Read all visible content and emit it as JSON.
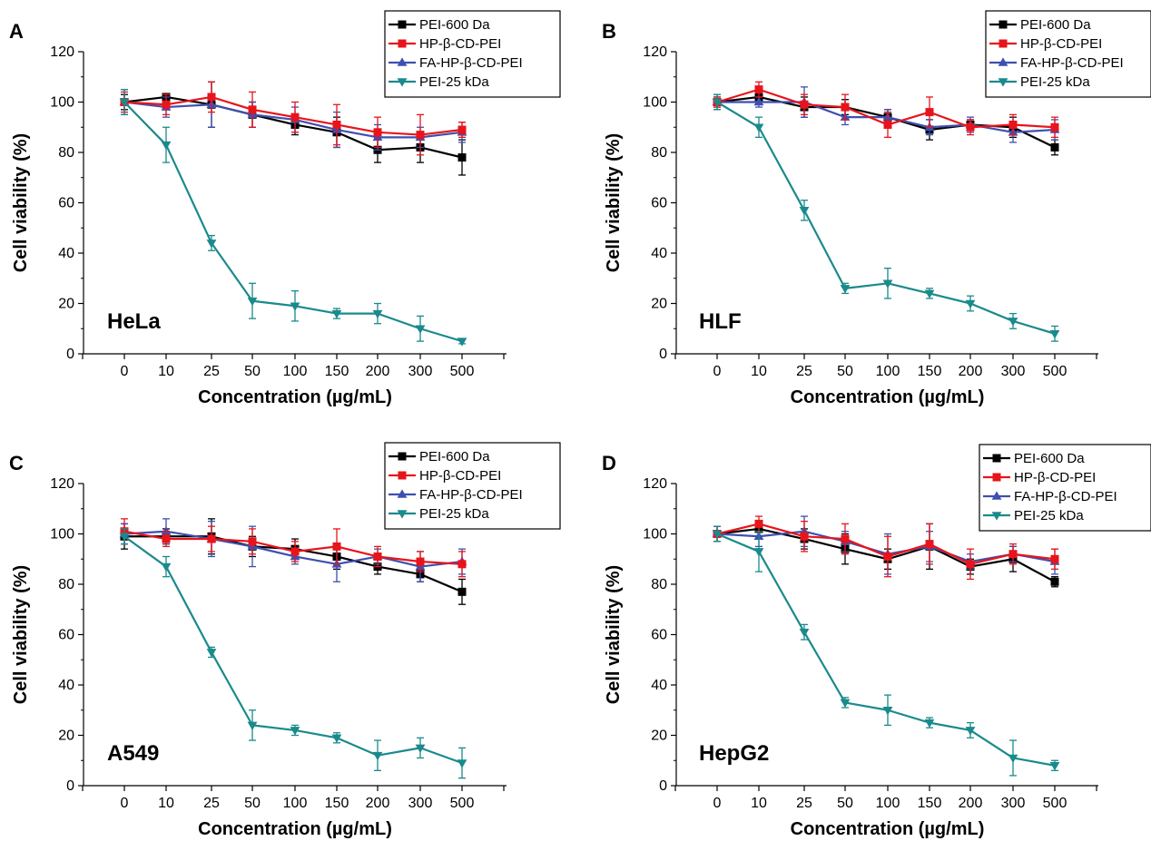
{
  "figure": {
    "chart_data": [
      {
        "type": "line",
        "panel": "A",
        "cell_line": "HeLa",
        "xlabel": "Concentration (µg/mL)",
        "ylabel": "Cell viability (%)",
        "categories": [
          "0",
          "10",
          "25",
          "50",
          "100",
          "150",
          "200",
          "300",
          "500"
        ],
        "ylim": [
          0,
          120
        ],
        "yticks": [
          0,
          20,
          40,
          60,
          80,
          100,
          120
        ],
        "legend_position": "top-right",
        "series": [
          {
            "name": "PEI-600 Da",
            "color": "#000000",
            "marker": "square",
            "values": [
              100,
              102,
              99,
              95,
              91,
              88,
              81,
              82,
              78
            ],
            "errors": [
              3,
              1,
              9,
              5,
              4,
              6,
              5,
              6,
              7
            ]
          },
          {
            "name": "HP-β-CD-PEI",
            "color": "#e8141b",
            "marker": "square",
            "values": [
              100,
              99,
              102,
              97,
              94,
              91,
              88,
              87,
              89
            ],
            "errors": [
              4,
              4,
              6,
              7,
              6,
              8,
              6,
              8,
              3
            ]
          },
          {
            "name": "FA-HP-β-CD-PEI",
            "color": "#3e4fb0",
            "marker": "triangle-up",
            "values": [
              100,
              98,
              99,
              95,
              93,
              89,
              86,
              86,
              88
            ],
            "errors": [
              5,
              4,
              9,
              5,
              5,
              7,
              5,
              4,
              4
            ]
          },
          {
            "name": "PEI-25 kDa",
            "color": "#1a8a8c",
            "marker": "triangle-down",
            "values": [
              100,
              83,
              44,
              21,
              19,
              16,
              16,
              10,
              5
            ],
            "errors": [
              5,
              7,
              3,
              7,
              6,
              2,
              4,
              5,
              1
            ]
          }
        ]
      },
      {
        "type": "line",
        "panel": "B",
        "cell_line": "HLF",
        "xlabel": "Concentration (µg/mL)",
        "ylabel": "Cell viability (%)",
        "categories": [
          "0",
          "10",
          "25",
          "50",
          "100",
          "150",
          "200",
          "300",
          "500"
        ],
        "ylim": [
          0,
          120
        ],
        "yticks": [
          0,
          20,
          40,
          60,
          80,
          100,
          120
        ],
        "legend_position": "top-right",
        "series": [
          {
            "name": "PEI-600 Da",
            "color": "#000000",
            "marker": "square",
            "values": [
              100,
              102,
              98,
              98,
              94,
              89,
              91,
              90,
              82
            ],
            "errors": [
              2,
              3,
              4,
              3,
              3,
              4,
              2,
              4,
              3
            ]
          },
          {
            "name": "HP-β-CD-PEI",
            "color": "#e8141b",
            "marker": "square",
            "values": [
              100,
              105,
              99,
              98,
              91,
              96,
              90,
              91,
              90
            ],
            "errors": [
              2,
              3,
              4,
              5,
              5,
              6,
              3,
              4,
              4
            ]
          },
          {
            "name": "FA-HP-β-CD-PEI",
            "color": "#3e4fb0",
            "marker": "triangle-up",
            "values": [
              100,
              100,
              100,
              94,
              94,
              90,
              91,
              88,
              89
            ],
            "errors": [
              3,
              2,
              6,
              3,
              3,
              3,
              3,
              4,
              4
            ]
          },
          {
            "name": "PEI-25 kDa",
            "color": "#1a8a8c",
            "marker": "triangle-down",
            "values": [
              100,
              90,
              57,
              26,
              28,
              24,
              20,
              13,
              8
            ],
            "errors": [
              3,
              4,
              4,
              2,
              6,
              2,
              3,
              3,
              3
            ]
          }
        ]
      },
      {
        "type": "line",
        "panel": "C",
        "cell_line": "A549",
        "xlabel": "Concentration (µg/mL)",
        "ylabel": "Cell viability (%)",
        "categories": [
          "0",
          "10",
          "25",
          "50",
          "100",
          "150",
          "200",
          "300",
          "500"
        ],
        "ylim": [
          0,
          120
        ],
        "yticks": [
          0,
          20,
          40,
          60,
          80,
          100,
          120
        ],
        "legend_position": "top-right",
        "series": [
          {
            "name": "PEI-600 Da",
            "color": "#000000",
            "marker": "square",
            "values": [
              99,
              99,
              99,
              95,
              94,
              91,
              87,
              84,
              77
            ],
            "errors": [
              5,
              3,
              7,
              4,
              4,
              5,
              3,
              3,
              5
            ]
          },
          {
            "name": "HP-β-CD-PEI",
            "color": "#e8141b",
            "marker": "square",
            "values": [
              101,
              98,
              98,
              97,
              93,
              95,
              91,
              89,
              88
            ],
            "errors": [
              5,
              3,
              5,
              5,
              4,
              7,
              4,
              4,
              5
            ]
          },
          {
            "name": "FA-HP-β-CD-PEI",
            "color": "#3e4fb0",
            "marker": "triangle-up",
            "values": [
              100,
              101,
              98,
              95,
              91,
              88,
              91,
              87,
              89
            ],
            "errors": [
              4,
              5,
              7,
              8,
              3,
              7,
              3,
              6,
              5
            ]
          },
          {
            "name": "PEI-25 kDa",
            "color": "#1a8a8c",
            "marker": "triangle-down",
            "values": [
              99,
              87,
              53,
              24,
              22,
              19,
              12,
              15,
              9
            ],
            "errors": [
              3,
              4,
              2,
              6,
              2,
              2,
              6,
              4,
              6
            ]
          }
        ]
      },
      {
        "type": "line",
        "panel": "D",
        "cell_line": "HepG2",
        "xlabel": "Concentration (µg/mL)",
        "ylabel": "Cell viability (%)",
        "categories": [
          "0",
          "10",
          "25",
          "50",
          "100",
          "150",
          "200",
          "300",
          "500"
        ],
        "ylim": [
          0,
          120
        ],
        "yticks": [
          0,
          20,
          40,
          60,
          80,
          100,
          120
        ],
        "legend_position": "top-right",
        "series": [
          {
            "name": "PEI-600 Da",
            "color": "#000000",
            "marker": "square",
            "values": [
              100,
              102,
              98,
              94,
              90,
              95,
              87,
              90,
              81
            ],
            "errors": [
              3,
              3,
              4,
              6,
              4,
              9,
              3,
              5,
              2
            ]
          },
          {
            "name": "HP-β-CD-PEI",
            "color": "#e8141b",
            "marker": "square",
            "values": [
              100,
              104,
              99,
              98,
              91,
              96,
              88,
              92,
              90
            ],
            "errors": [
              3,
              3,
              6,
              6,
              8,
              8,
              6,
              4,
              4
            ]
          },
          {
            "name": "FA-HP-β-CD-PEI",
            "color": "#3e4fb0",
            "marker": "triangle-up",
            "values": [
              100,
              99,
              101,
              97,
              92,
              95,
              89,
              92,
              89
            ],
            "errors": [
              3,
              4,
              6,
              4,
              8,
              6,
              3,
              3,
              5
            ]
          },
          {
            "name": "PEI-25 kDa",
            "color": "#1a8a8c",
            "marker": "triangle-down",
            "values": [
              100,
              93,
              61,
              33,
              30,
              25,
              22,
              11,
              8
            ],
            "errors": [
              3,
              8,
              3,
              2,
              6,
              2,
              3,
              7,
              2
            ]
          }
        ]
      }
    ]
  }
}
